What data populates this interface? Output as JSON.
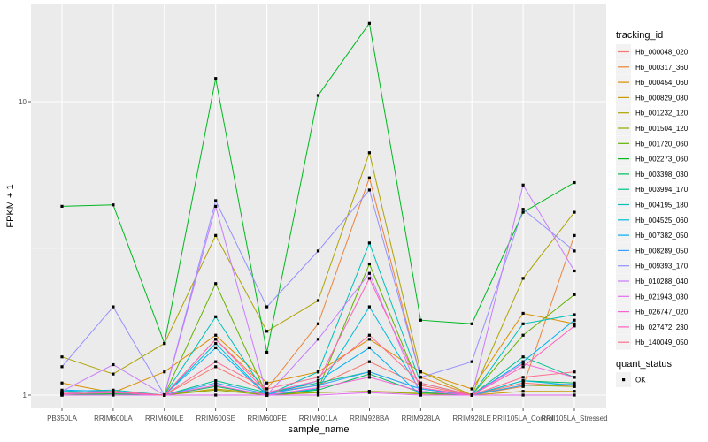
{
  "chart_data": {
    "type": "line",
    "xlabel": "sample_name",
    "ylabel": "FPKM + 1",
    "yscale": "log10",
    "ylim": [
      0.96,
      21
    ],
    "y_ticks": [
      {
        "value": 1,
        "label": "1"
      },
      {
        "value": 10,
        "label": "10"
      }
    ],
    "grid": true,
    "legend_position": "right",
    "categories": [
      "PB350LA",
      "RRIM600LA",
      "RRIM600LE",
      "RRIM600SE",
      "RRIM600PE",
      "RRIM901LA",
      "RRIM928BA",
      "RRIM928LA",
      "RRIM928LE",
      "RRII105LA_Control",
      "RRII105LA_Stressed"
    ],
    "legend": {
      "color_title": "tracking_id",
      "shape_title": "quant_status",
      "shape_entries": [
        "OK"
      ]
    },
    "series": [
      {
        "name": "Hb_000048_020",
        "color": "#F8766D",
        "values": [
          1.01,
          1.02,
          1.0,
          1.25,
          1.02,
          1.08,
          1.3,
          1.08,
          1.0,
          1.1,
          1.07
        ]
      },
      {
        "name": "Hb_000317_360",
        "color": "#EC8239",
        "values": [
          1.02,
          1.03,
          1.0,
          1.55,
          1.05,
          1.75,
          5.5,
          1.15,
          1.0,
          1.07,
          3.5
        ]
      },
      {
        "name": "Hb_000454_060",
        "color": "#DB8E00",
        "values": [
          1.1,
          1.02,
          1.2,
          1.6,
          1.1,
          1.2,
          1.55,
          1.2,
          1.05,
          1.9,
          1.75
        ]
      },
      {
        "name": "Hb_000829_080",
        "color": "#C79800",
        "values": [
          1.0,
          1.0,
          1.0,
          1.05,
          1.01,
          1.02,
          1.03,
          1.02,
          1.0,
          1.03,
          1.03
        ]
      },
      {
        "name": "Hb_001232_120",
        "color": "#AEA200",
        "values": [
          1.35,
          1.18,
          1.5,
          3.5,
          1.65,
          2.1,
          6.7,
          1.2,
          1.0,
          2.5,
          4.2
        ]
      },
      {
        "name": "Hb_001504_120",
        "color": "#8FAA00",
        "values": [
          1.01,
          1.01,
          1.0,
          1.04,
          1.0,
          1.02,
          1.03,
          1.01,
          1.0,
          1.08,
          1.07
        ]
      },
      {
        "name": "Hb_001720_060",
        "color": "#64B200",
        "values": [
          1.0,
          1.01,
          1.0,
          2.4,
          1.0,
          1.05,
          2.8,
          1.05,
          1.0,
          1.6,
          2.2
        ]
      },
      {
        "name": "Hb_002273_060",
        "color": "#00B81F",
        "values": [
          4.4,
          4.45,
          1.5,
          12.0,
          1.4,
          10.5,
          18.5,
          1.8,
          1.75,
          4.2,
          5.3
        ]
      },
      {
        "name": "Hb_003398_030",
        "color": "#00BD5C",
        "values": [
          1.0,
          1.01,
          1.0,
          1.07,
          1.0,
          1.04,
          1.18,
          1.02,
          1.0,
          1.12,
          1.1
        ]
      },
      {
        "name": "Hb_003994_170",
        "color": "#00C08D",
        "values": [
          1.02,
          1.03,
          1.0,
          1.12,
          1.02,
          1.1,
          1.2,
          1.05,
          1.0,
          1.35,
          1.15
        ]
      },
      {
        "name": "Hb_004195_180",
        "color": "#00C0B8",
        "values": [
          1.03,
          1.04,
          1.0,
          1.85,
          1.0,
          1.2,
          3.3,
          1.1,
          1.0,
          1.75,
          1.88
        ]
      },
      {
        "name": "Hb_004525_060",
        "color": "#00BCD8",
        "values": [
          1.01,
          1.02,
          1.0,
          1.5,
          1.0,
          1.05,
          2.0,
          1.03,
          1.0,
          1.12,
          1.08
        ]
      },
      {
        "name": "Hb_007382_050",
        "color": "#00B0F6",
        "values": [
          1.04,
          1.03,
          1.0,
          1.45,
          1.0,
          1.12,
          1.45,
          1.0,
          1.0,
          1.3,
          1.8
        ]
      },
      {
        "name": "Hb_008289_050",
        "color": "#35A2FF",
        "values": [
          1.02,
          1.03,
          1.0,
          1.1,
          1.01,
          1.08,
          1.2,
          1.05,
          1.0,
          1.08,
          1.09
        ]
      },
      {
        "name": "Hb_009393_170",
        "color": "#9590FF",
        "values": [
          1.25,
          2.0,
          1.0,
          4.6,
          2.0,
          3.1,
          5.0,
          1.15,
          1.3,
          4.3,
          3.1
        ]
      },
      {
        "name": "Hb_010288_040",
        "color": "#C77CFF",
        "values": [
          1.03,
          1.27,
          1.0,
          4.4,
          1.0,
          1.55,
          2.6,
          1.0,
          1.0,
          5.2,
          2.65
        ]
      },
      {
        "name": "Hb_021943_030",
        "color": "#E76BF3",
        "values": [
          1.0,
          1.0,
          1.0,
          1.0,
          1.0,
          1.0,
          1.02,
          1.0,
          1.0,
          1.0,
          1.0
        ]
      },
      {
        "name": "Hb_026747_020",
        "color": "#FA62DB",
        "values": [
          1.01,
          1.02,
          1.0,
          1.08,
          1.0,
          1.06,
          1.15,
          1.03,
          1.0,
          1.28,
          1.15
        ]
      },
      {
        "name": "Hb_027472_230",
        "color": "#FF62BC",
        "values": [
          1.01,
          1.02,
          1.0,
          1.55,
          1.02,
          1.12,
          2.5,
          1.06,
          1.0,
          1.25,
          1.72
        ]
      },
      {
        "name": "Hb_140049_050",
        "color": "#FF6C91",
        "values": [
          1.02,
          1.03,
          1.0,
          1.3,
          1.05,
          1.15,
          1.6,
          1.1,
          1.0,
          1.15,
          1.2
        ]
      }
    ]
  }
}
